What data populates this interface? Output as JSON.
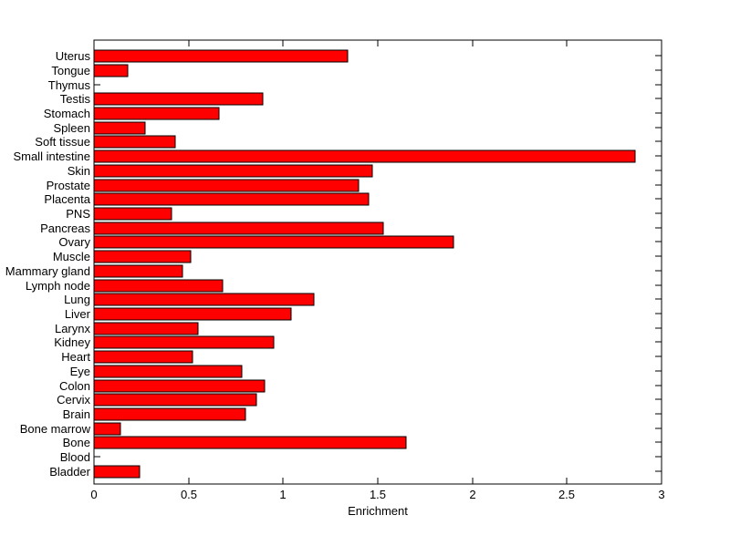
{
  "figure": {
    "background": "#ffffff"
  },
  "chart_data": {
    "type": "bar",
    "orientation": "horizontal",
    "title": "",
    "xlabel": "Enrichment",
    "ylabel": "",
    "xlim": [
      0,
      3
    ],
    "xticks": [
      0,
      0.5,
      1,
      1.5,
      2,
      2.5,
      3
    ],
    "xtick_labels": [
      "0",
      "0.5",
      "1",
      "1.5",
      "2",
      "2.5",
      "3"
    ],
    "grid": false,
    "legend": null,
    "bar_color": "#ff0000",
    "bar_edge_color": "#000000",
    "axis_color": "#000000",
    "categories": [
      "Uterus",
      "Tongue",
      "Thymus",
      "Testis",
      "Stomach",
      "Spleen",
      "Soft tissue",
      "Small intestine",
      "Skin",
      "Prostate",
      "Placenta",
      "PNS",
      "Pancreas",
      "Ovary",
      "Muscle",
      "Mammary gland",
      "Lymph node",
      "Lung",
      "Liver",
      "Larynx",
      "Kidney",
      "Heart",
      "Eye",
      "Colon",
      "Cervix",
      "Brain",
      "Bone marrow",
      "Bone",
      "Blood",
      "Bladder"
    ],
    "values": [
      1.34,
      0.18,
      0,
      0.89,
      0.66,
      0.27,
      0.43,
      2.86,
      1.47,
      1.4,
      1.45,
      0.41,
      1.53,
      1.9,
      0.51,
      0.47,
      0.68,
      1.16,
      1.04,
      0.55,
      0.95,
      0.52,
      0.78,
      0.9,
      0.86,
      0.8,
      0.14,
      1.65,
      0,
      0.24
    ]
  }
}
